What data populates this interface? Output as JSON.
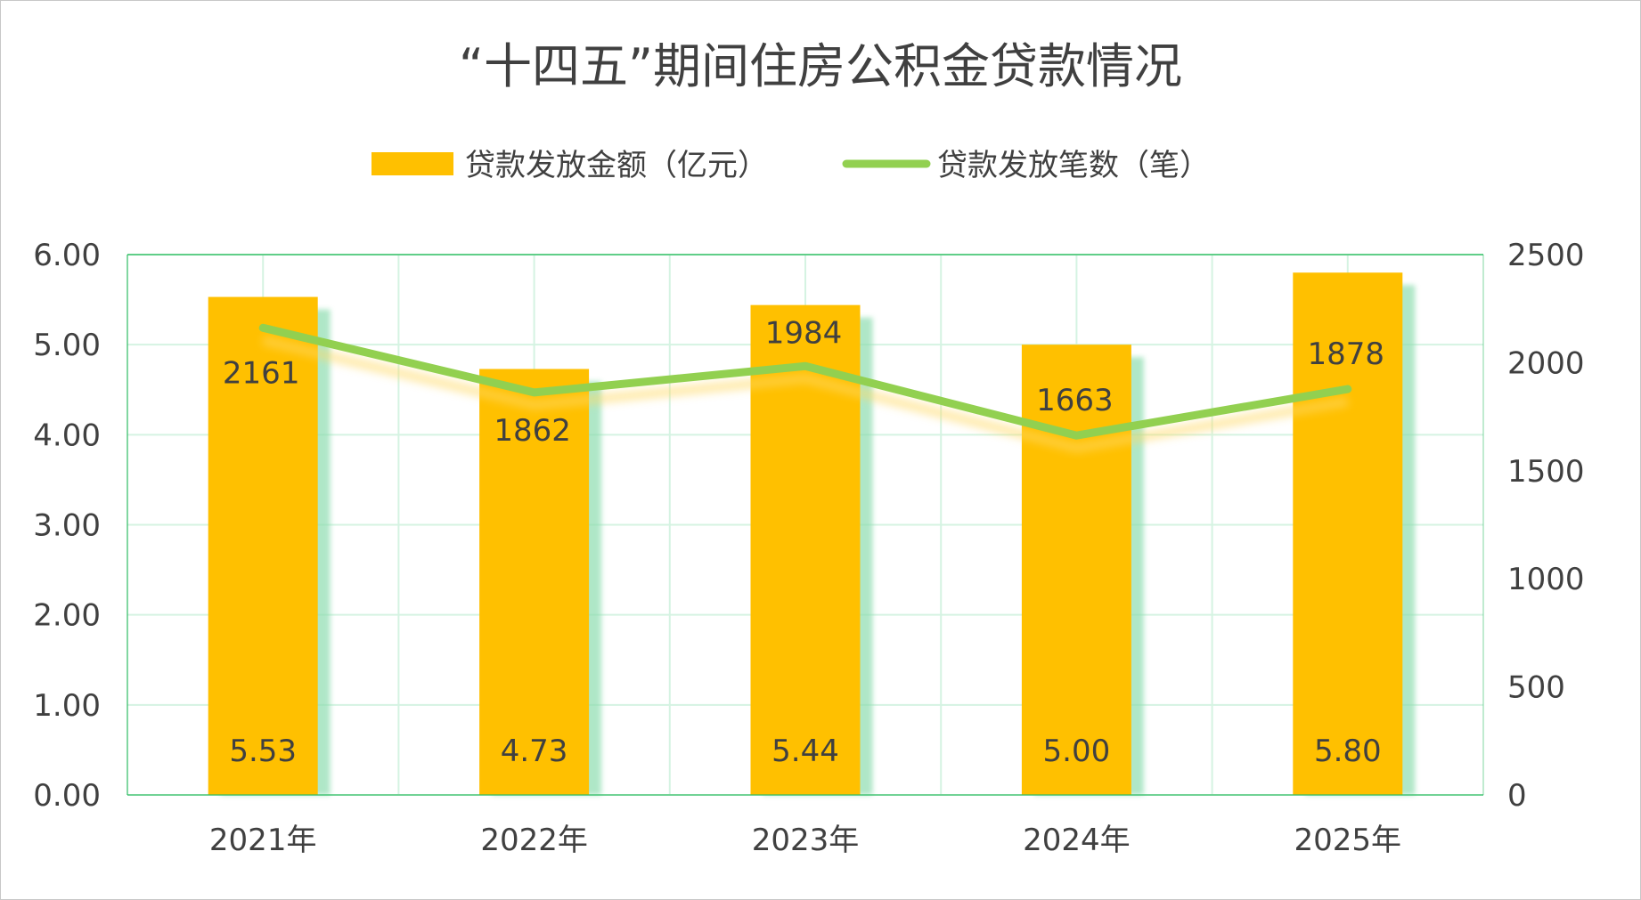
{
  "chart_data": {
    "type": "bar+line",
    "title": "“十四五”期间住房公积金贷款情况",
    "categories": [
      "2021年",
      "2022年",
      "2023年",
      "2024年",
      "2025年"
    ],
    "series": [
      {
        "name": "贷款发放金额（亿元）",
        "type": "bar",
        "axis": "left",
        "values": [
          5.53,
          4.73,
          5.44,
          5.0,
          5.8
        ],
        "labels": [
          "5.53",
          "4.73",
          "5.44",
          "5.00",
          "5.80"
        ],
        "color": "#FFC000"
      },
      {
        "name": "贷款发放笔数（笔）",
        "type": "line",
        "axis": "right",
        "values": [
          2161,
          1862,
          1984,
          1663,
          1878
        ],
        "labels": [
          "2161",
          "1862",
          "1984",
          "1663",
          "1878"
        ],
        "color": "#92D050"
      }
    ],
    "y_left": {
      "range": [
        0,
        6
      ],
      "ticks": [
        "0.00",
        "1.00",
        "2.00",
        "3.00",
        "4.00",
        "5.00",
        "6.00"
      ]
    },
    "y_right": {
      "range": [
        0,
        2500
      ],
      "ticks": [
        "0",
        "500",
        "1000",
        "1500",
        "2000",
        "2500"
      ]
    },
    "legend": "top",
    "grid": true,
    "grid_color": "#D5F3E2",
    "plot_border_color": "#2EBD63"
  }
}
